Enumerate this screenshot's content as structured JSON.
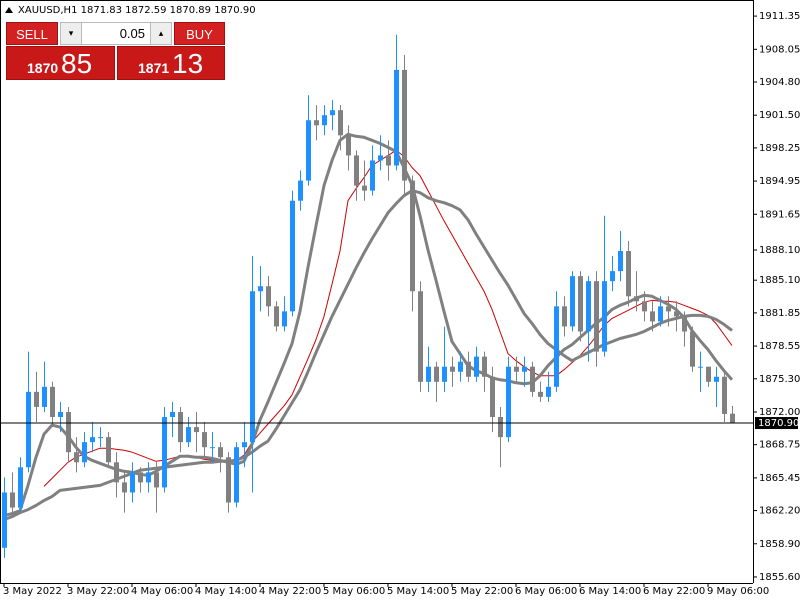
{
  "chart_data": {
    "type": "candlestick",
    "header": "XAUUSD,H1  1871.83 1872.59 1870.89 1870.90",
    "categories": [
      "3 May 2022",
      null,
      null,
      null,
      null,
      null,
      null,
      null,
      "3 May 22:00",
      null,
      null,
      null,
      null,
      null,
      null,
      null,
      "4 May 06:00",
      null,
      null,
      null,
      null,
      null,
      null,
      null,
      "4 May 14:00",
      null,
      null,
      null,
      null,
      null,
      null,
      null,
      "4 May 22:00",
      null,
      null,
      null,
      null,
      null,
      null,
      null,
      "5 May 06:00",
      null,
      null,
      null,
      null,
      null,
      null,
      null,
      "5 May 14:00",
      null,
      null,
      null,
      null,
      null,
      null,
      null,
      "5 May 22:00",
      null,
      null,
      null,
      null,
      null,
      null,
      null,
      "6 May 06:00",
      null,
      null,
      null,
      null,
      null,
      null,
      null,
      "6 May 14:00",
      null,
      null,
      null,
      null,
      null,
      null,
      null,
      "6 May 22:00",
      null,
      null,
      null,
      null,
      null,
      null,
      null,
      "9 May 06:00",
      null,
      null,
      null
    ],
    "open": [
      1858.5,
      1864,
      1862.5,
      1866.5,
      1874,
      1872.5,
      1874.5,
      1871.5,
      1872,
      1868,
      1867,
      1869,
      1869.5,
      1869.5,
      1867,
      1865,
      1864,
      1866,
      1865,
      1866,
      1864.5,
      1871.5,
      1872,
      1869,
      1870.5,
      1870,
      1868.5,
      1868.5,
      1867.5,
      1863,
      1868.5,
      1869,
      1884,
      1884.5,
      1882.5,
      1880.5,
      1882,
      1893,
      1895,
      1901,
      1900.5,
      1901.5,
      1902,
      1899.5,
      1897.5,
      1894.5,
      1894,
      1897,
      1897.5,
      1896.5,
      1906,
      1895,
      1884,
      1875,
      1876.5,
      1875,
      1876.5,
      1876,
      1877,
      1875.5,
      1877.5,
      1875.5,
      1871.5,
      1869.5,
      1876.5,
      1876,
      1876.5,
      1874,
      1873.5,
      1874.5,
      1882.5,
      1880.5,
      1885.5,
      1880,
      1885,
      1878,
      1885,
      1886,
      1888,
      1883.5,
      1883,
      1882,
      1881,
      1882.5,
      1882,
      1881.5,
      1880,
      1876.5,
      1876.5,
      1875,
      1875.5,
      1871.83
    ],
    "high": [
      1865.5,
      1866,
      1867.5,
      1878,
      1876,
      1877,
      1875,
      1873,
      1872.5,
      1869.5,
      1870,
      1871,
      1870.5,
      1870,
      1868,
      1866,
      1867,
      1866.5,
      1867,
      1867,
      1872.5,
      1873,
      1872.5,
      1871.5,
      1872,
      1871,
      1870,
      1869,
      1868,
      1869,
      1871,
      1887.5,
      1886.5,
      1885.5,
      1883,
      1883.5,
      1894,
      1896,
      1903.5,
      1902.5,
      1902.5,
      1903,
      1902.5,
      1900.5,
      1898,
      1897,
      1898.5,
      1899.5,
      1899,
      1909.5,
      1907.5,
      1895.5,
      1885,
      1878.5,
      1877,
      1880.5,
      1877.5,
      1878,
      1878,
      1878.5,
      1878,
      1876.5,
      1872.5,
      1877.5,
      1877.5,
      1877.5,
      1877,
      1875,
      1876,
      1884,
      1883.5,
      1886,
      1886,
      1885.5,
      1886,
      1891.5,
      1887.5,
      1890,
      1889,
      1886,
      1884,
      1883,
      1883.5,
      1883.5,
      1883,
      1882,
      1880.5,
      1878,
      1876.5,
      1876.5,
      1876,
      1872.59
    ],
    "low": [
      1857.5,
      1861.5,
      1862,
      1866,
      1871,
      1872,
      1870.5,
      1870,
      1867,
      1866,
      1866.5,
      1868,
      1868.5,
      1866.5,
      1863.5,
      1862,
      1863,
      1864,
      1864,
      1862,
      1864,
      1869.5,
      1868,
      1868.5,
      1868,
      1867.5,
      1867,
      1866,
      1862,
      1862.5,
      1866.5,
      1864,
      1882,
      1881.5,
      1880,
      1880,
      1881.5,
      1892,
      1894.5,
      1899,
      1899.5,
      1900,
      1898,
      1896,
      1893,
      1893,
      1893.5,
      1896,
      1895,
      1896,
      1893.5,
      1882,
      1874,
      1874,
      1873,
      1874,
      1874.5,
      1875,
      1875,
      1875,
      1874,
      1870,
      1866.5,
      1869,
      1875,
      1874.5,
      1873.5,
      1873,
      1873,
      1874,
      1879.5,
      1880,
      1879,
      1877,
      1876.5,
      1877.5,
      1884,
      1885,
      1882.5,
      1882,
      1881,
      1880,
      1880.5,
      1880.5,
      1880,
      1878.5,
      1876,
      1874,
      1874.5,
      1872.5,
      1871,
      1870.89
    ],
    "close": [
      1864,
      1862.5,
      1866.5,
      1874,
      1872.5,
      1874.5,
      1871.5,
      1872,
      1868,
      1867,
      1869,
      1869.5,
      1869.5,
      1867,
      1865,
      1864,
      1866,
      1865,
      1866,
      1864.5,
      1871.5,
      1872,
      1869,
      1870.5,
      1870,
      1868.5,
      1868.5,
      1867.5,
      1863,
      1868.5,
      1869,
      1884,
      1884.5,
      1882.5,
      1880.5,
      1882,
      1893,
      1895,
      1901,
      1900.5,
      1901.5,
      1902,
      1899.5,
      1897.5,
      1894.5,
      1894,
      1897,
      1897.5,
      1896.5,
      1906,
      1895,
      1884,
      1875,
      1876.5,
      1875,
      1876.5,
      1876,
      1877,
      1875.5,
      1877.5,
      1875.5,
      1871.5,
      1869.5,
      1876.5,
      1876,
      1876.5,
      1874,
      1873.5,
      1874.5,
      1882.5,
      1880.5,
      1885.5,
      1880,
      1885,
      1878,
      1885,
      1886,
      1888,
      1883.5,
      1883,
      1882,
      1881,
      1882.5,
      1882,
      1881.5,
      1880,
      1876.5,
      1876.5,
      1875,
      1875.5,
      1871.8,
      1870.9
    ],
    "up_color": "#1e90ff",
    "down_color": "#808080",
    "overlays": [
      {
        "color": "#cc0000",
        "width": 1,
        "values": [
          null,
          null,
          null,
          null,
          null,
          1864.6,
          1865.4,
          1866.2,
          1867,
          1867.5,
          1867.8,
          1868.1,
          1868.4,
          1868.4,
          1868.3,
          1868.2,
          1868,
          1867.7,
          1867.4,
          1867.1,
          1867.2,
          1867.4,
          1867.6,
          1867.7,
          1867.5,
          1867.3,
          1867.2,
          1867.2,
          1867.2,
          1867.2,
          1867.7,
          1869,
          1869.9,
          1870.8,
          1871.7,
          1872.6,
          1873.7,
          1875.5,
          1877.3,
          1879.2,
          1881.5,
          1884.7,
          1888,
          1893,
          1894.2,
          1895.3,
          1896.5,
          1897,
          1897.5,
          1898,
          1897.4,
          1896.3,
          1895.5,
          1894,
          1892.5,
          1891,
          1889.6,
          1888.2,
          1886.8,
          1885.4,
          1884,
          1882.2,
          1880,
          1877.8,
          1877.1,
          1876.5,
          1876,
          1875.6,
          1875.6,
          1875.6,
          1876.2,
          1876.9,
          1877.6,
          1878.5,
          1879.5,
          1880.6,
          1881.3,
          1881.7,
          1882.1,
          1882.5,
          1882.9,
          1883.1,
          1883,
          1883,
          1882.9,
          1882.6,
          1882.3,
          1882,
          1881.6,
          1880.8,
          1879.7,
          1878.6
        ]
      },
      {
        "color": "#808080",
        "width": 3,
        "values": [
          1861.7,
          1861.9,
          1862.2,
          1864.7,
          1867.5,
          1869.8,
          1870.7,
          1870.5,
          1869.6,
          1868.5,
          1867.6,
          1867.2,
          1866.9,
          1866.6,
          1866.3,
          1866.1,
          1866,
          1865.8,
          1865.7,
          1866.1,
          1866.6,
          1867.1,
          1867.6,
          1867.6,
          1867.5,
          1867.5,
          1867.4,
          1867.2,
          1867,
          1866.8,
          1867.1,
          1868.8,
          1871.2,
          1873,
          1874.9,
          1876.8,
          1878.8,
          1882,
          1886.4,
          1890.5,
          1894.5,
          1897,
          1899,
          1899.6,
          1899.4,
          1899.3,
          1899,
          1898.7,
          1898.3,
          1897.9,
          1896.3,
          1894.6,
          1891.5,
          1888.1,
          1885.1,
          1882,
          1879,
          1877.8,
          1876.6,
          1876.1,
          1875.8,
          1875.4,
          1875.2,
          1875.1,
          1874.9,
          1874.8,
          1874.9,
          1875.6,
          1876.6,
          1877.4,
          1878.2,
          1878.7,
          1879.4,
          1880.1,
          1880.8,
          1881.4,
          1882.2,
          1882.6,
          1882.9,
          1883.3,
          1883.6,
          1883.5,
          1883.1,
          1882.7,
          1882.2,
          1881.4,
          1880.1,
          1879.1,
          1878.2,
          1877.1,
          1876.1,
          1875.2
        ]
      },
      {
        "color": "#808080",
        "width": 3,
        "values": [
          1861.3,
          1861.6,
          1862,
          1862.3,
          1862.7,
          1863.2,
          1863.6,
          1864.2,
          1864.3,
          1864.4,
          1864.5,
          1864.6,
          1864.7,
          1865,
          1865.3,
          1865.6,
          1865.9,
          1866.2,
          1866.3,
          1866.4,
          1866.5,
          1866.6,
          1866.7,
          1866.8,
          1866.9,
          1867,
          1867,
          1867.1,
          1867.1,
          1867.2,
          1867.5,
          1868,
          1868.6,
          1869.1,
          1870.3,
          1871.6,
          1872.9,
          1874.2,
          1876,
          1877.9,
          1879.7,
          1881.5,
          1883.1,
          1884.7,
          1886.3,
          1887.8,
          1889.2,
          1890.5,
          1891.8,
          1892.7,
          1893.5,
          1894,
          1893.8,
          1893.3,
          1893,
          1892.8,
          1892.5,
          1892.1,
          1891.1,
          1889.7,
          1888.4,
          1887.1,
          1885.8,
          1884.6,
          1883.2,
          1881.8,
          1880.8,
          1879.7,
          1878.8,
          1878.2,
          1877.6,
          1877.1,
          1877.5,
          1877.9,
          1878.3,
          1878.7,
          1879,
          1879.3,
          1879.5,
          1879.7,
          1880,
          1880.4,
          1880.8,
          1881.1,
          1881.3,
          1881.5,
          1881.6,
          1881.6,
          1881.5,
          1881.2,
          1880.7,
          1880.1
        ]
      }
    ],
    "current_price": {
      "value": 1870.9,
      "label": "1870.90"
    },
    "ylim": [
      1855.0,
      1912.95
    ],
    "yticks": [
      1911.35,
      1908.05,
      {
        "value": 1904.8,
        "label": "1904.80"
      },
      {
        "value": 1901.5,
        "label": "1901.50"
      },
      1898.25,
      1894.95,
      1891.65,
      {
        "value": 1888.1,
        "label": "1888.10"
      },
      {
        "value": 1885.1,
        "label": "1885.10"
      },
      1881.85,
      1878.55,
      {
        "value": 1875.3,
        "label": "1875.30"
      },
      {
        "value": 1872,
        "label": "1872.00"
      },
      1868.75,
      1865.45,
      {
        "value": 1862.2,
        "label": "1862.20"
      },
      {
        "value": 1858.9,
        "label": "1858.90"
      },
      {
        "value": 1855.6,
        "label": "1855.60"
      }
    ]
  },
  "trade_panel": {
    "sell": "SELL",
    "buy": "BUY",
    "lot": "0.05",
    "bid_big": "1870",
    "bid_small": "85",
    "ask_big": "1871",
    "ask_small": "13"
  }
}
